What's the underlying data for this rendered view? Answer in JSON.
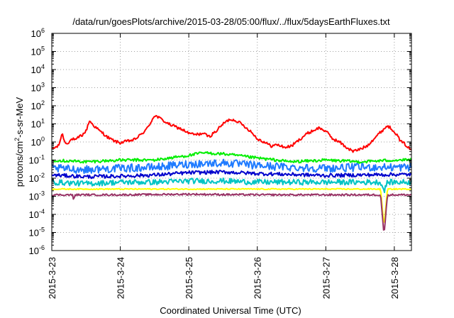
{
  "chart_data": {
    "type": "line",
    "title": "/data/run/goesPlots/archive/2015-03-28/05:00/flux/../flux/5daysEarthFluxes.txt",
    "xlabel": "Coordinated Universal Time (UTC)",
    "ylabel": "protons/cm²-s-sr-MeV",
    "ylabel_parts": {
      "before": "protons/cm",
      "sup": "2",
      "after": "-s-sr-MeV"
    },
    "yscale": "log",
    "ylim_exp": [
      -6,
      6
    ],
    "y_ticks": [
      {
        "base": "10",
        "exp": "-6"
      },
      {
        "base": "10",
        "exp": "-5"
      },
      {
        "base": "10",
        "exp": "-4"
      },
      {
        "base": "10",
        "exp": "-3"
      },
      {
        "base": "10",
        "exp": "-2"
      },
      {
        "base": "10",
        "exp": "-1"
      },
      {
        "base": "10",
        "exp": "0"
      },
      {
        "base": "10",
        "exp": "1"
      },
      {
        "base": "10",
        "exp": "2"
      },
      {
        "base": "10",
        "exp": "3"
      },
      {
        "base": "10",
        "exp": "4"
      },
      {
        "base": "10",
        "exp": "5"
      },
      {
        "base": "10",
        "exp": "6"
      }
    ],
    "x_unit": "day",
    "xlim": [
      0,
      5.25
    ],
    "x_ticks": [
      {
        "label": "2015-3-23",
        "value": 0
      },
      {
        "label": "2015-3-24",
        "value": 1
      },
      {
        "label": "2015-3-25",
        "value": 2
      },
      {
        "label": "2015-3-26",
        "value": 3
      },
      {
        "label": "2015-3-27",
        "value": 4
      },
      {
        "label": "2015-3-28",
        "value": 5
      }
    ],
    "grid": true,
    "legend": "none",
    "series": [
      {
        "color": "#ff0000",
        "jitter": 0.08,
        "x": [
          0,
          0.05,
          0.1,
          0.15,
          0.2,
          0.25,
          0.3,
          0.35,
          0.4,
          0.45,
          0.5,
          0.55,
          0.6,
          0.65,
          0.7,
          0.75,
          0.8,
          0.85,
          0.9,
          0.95,
          1.0,
          1.1,
          1.2,
          1.3,
          1.4,
          1.5,
          1.6,
          1.7,
          1.8,
          1.9,
          2.0,
          2.1,
          2.2,
          2.3,
          2.4,
          2.5,
          2.6,
          2.7,
          2.8,
          2.9,
          3.0,
          3.1,
          3.2,
          3.3,
          3.4,
          3.5,
          3.6,
          3.7,
          3.8,
          3.9,
          4.0,
          4.1,
          4.2,
          4.3,
          4.4,
          4.5,
          4.6,
          4.7,
          4.8,
          4.9,
          5.0,
          5.05,
          5.1,
          5.15,
          5.2,
          5.25
        ],
        "y": [
          0.4,
          0.5,
          0.6,
          3.0,
          0.8,
          1.0,
          1.5,
          1.2,
          2.0,
          2.5,
          4.0,
          15,
          9,
          6,
          4,
          3,
          2,
          1.5,
          1.2,
          1.0,
          0.9,
          1.1,
          1.3,
          2.5,
          6,
          30,
          18,
          10,
          7,
          5,
          3,
          2.5,
          3,
          2,
          4,
          10,
          18,
          15,
          8,
          4,
          1.5,
          1.0,
          0.6,
          0.7,
          0.5,
          0.6,
          1.2,
          2.5,
          4,
          6,
          4,
          1.5,
          1.0,
          0.5,
          0.3,
          0.4,
          0.6,
          1.5,
          3.5,
          8,
          4,
          2,
          1,
          0.8,
          0.5,
          0.35
        ]
      },
      {
        "color": "#00ee00",
        "jitter": 0.08,
        "x": [
          0,
          0.5,
          1.0,
          1.5,
          2.0,
          2.2,
          2.5,
          3.0,
          3.5,
          4.0,
          4.5,
          5.0,
          5.25
        ],
        "y": [
          0.1,
          0.08,
          0.1,
          0.1,
          0.18,
          0.25,
          0.22,
          0.13,
          0.08,
          0.1,
          0.08,
          0.1,
          0.1
        ]
      },
      {
        "color": "#1f7bff",
        "jitter": 0.22,
        "x": [
          0,
          0.5,
          1.0,
          1.5,
          2.0,
          2.5,
          3.0,
          3.5,
          4.0,
          4.5,
          5.0,
          5.25
        ],
        "y": [
          0.035,
          0.03,
          0.035,
          0.04,
          0.06,
          0.07,
          0.05,
          0.04,
          0.035,
          0.04,
          0.04,
          0.04
        ]
      },
      {
        "color": "#0000cc",
        "jitter": 0.1,
        "x": [
          0,
          0.5,
          1.0,
          1.5,
          2.0,
          2.5,
          3.0,
          3.5,
          4.0,
          4.5,
          5.0,
          5.25
        ],
        "y": [
          0.015,
          0.012,
          0.013,
          0.015,
          0.02,
          0.022,
          0.018,
          0.016,
          0.014,
          0.015,
          0.016,
          0.016
        ]
      },
      {
        "color": "#00c4c4",
        "jitter": 0.15,
        "x": [
          0,
          0.5,
          1.0,
          1.5,
          2.0,
          2.5,
          3.0,
          3.5,
          4.0,
          4.5,
          4.8,
          4.85,
          4.9,
          5.0,
          5.25
        ],
        "y": [
          0.006,
          0.005,
          0.006,
          0.006,
          0.007,
          0.007,
          0.006,
          0.006,
          0.006,
          0.006,
          0.006,
          0.002,
          0.006,
          0.006,
          0.006
        ]
      },
      {
        "color": "#ffff00",
        "jitter": 0.03,
        "x": [
          0,
          1.0,
          2.0,
          3.0,
          4.0,
          4.8,
          4.85,
          4.9,
          5.0,
          5.25
        ],
        "y": [
          0.0025,
          0.0025,
          0.0025,
          0.0025,
          0.0025,
          0.0025,
          2e-05,
          0.0025,
          0.0025,
          0.0025
        ]
      },
      {
        "color": "#993366",
        "jitter": 0.05,
        "x": [
          0,
          0.3,
          0.32,
          0.34,
          1.0,
          2.0,
          3.0,
          4.0,
          4.8,
          4.85,
          4.9,
          5.0,
          5.25
        ],
        "y": [
          0.0012,
          0.0012,
          0.0006,
          0.0012,
          0.0012,
          0.0013,
          0.0012,
          0.0012,
          0.0012,
          7e-06,
          0.0012,
          0.0012,
          0.0012
        ]
      }
    ]
  }
}
